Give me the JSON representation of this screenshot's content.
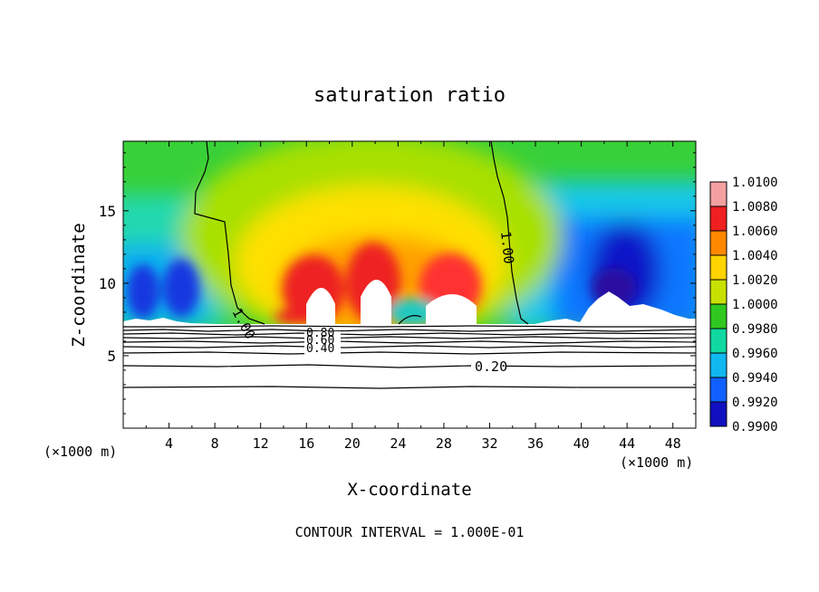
{
  "chart_data": {
    "type": "heatmap",
    "title": "saturation ratio",
    "xlabel": "X-coordinate",
    "ylabel": "Z-coordinate",
    "x_unit": "(×1000 m)",
    "y_unit": "(×1000 m)",
    "xlim": [
      0,
      50
    ],
    "ylim": [
      0,
      19.8
    ],
    "x_ticks": [
      4,
      8,
      12,
      16,
      20,
      24,
      28,
      32,
      36,
      40,
      44,
      48
    ],
    "y_ticks": [
      5,
      10,
      15
    ],
    "colorbar": {
      "ticks": [
        "1.0100",
        "1.0080",
        "1.0060",
        "1.0040",
        "1.0020",
        "1.0000",
        "0.9980",
        "0.9960",
        "0.9940",
        "0.9920",
        "0.9900"
      ],
      "min": 0.99,
      "max": 1.01,
      "colors": [
        "#f4a0a0",
        "#ee2020",
        "#ff8800",
        "#ffd400",
        "#c8e000",
        "#30c820",
        "#10d8a0",
        "#10b8f0",
        "#1060ff",
        "#1010c0",
        "#4a0a80"
      ]
    },
    "contour_labels": [
      {
        "text": "1.00",
        "x": 8.6,
        "z": 8.3
      },
      {
        "text": "1.00",
        "x": 33.6,
        "z": 12.5
      },
      {
        "text": "0.80",
        "x": 17.5,
        "z": 6.9
      },
      {
        "text": "0.60",
        "x": 17.5,
        "z": 6.4
      },
      {
        "text": "0.40",
        "x": 17.5,
        "z": 5.7
      },
      {
        "text": "0.20",
        "x": 32,
        "z": 4.1
      }
    ],
    "footnote": "CONTOUR INTERVAL = 1.000E-01"
  }
}
